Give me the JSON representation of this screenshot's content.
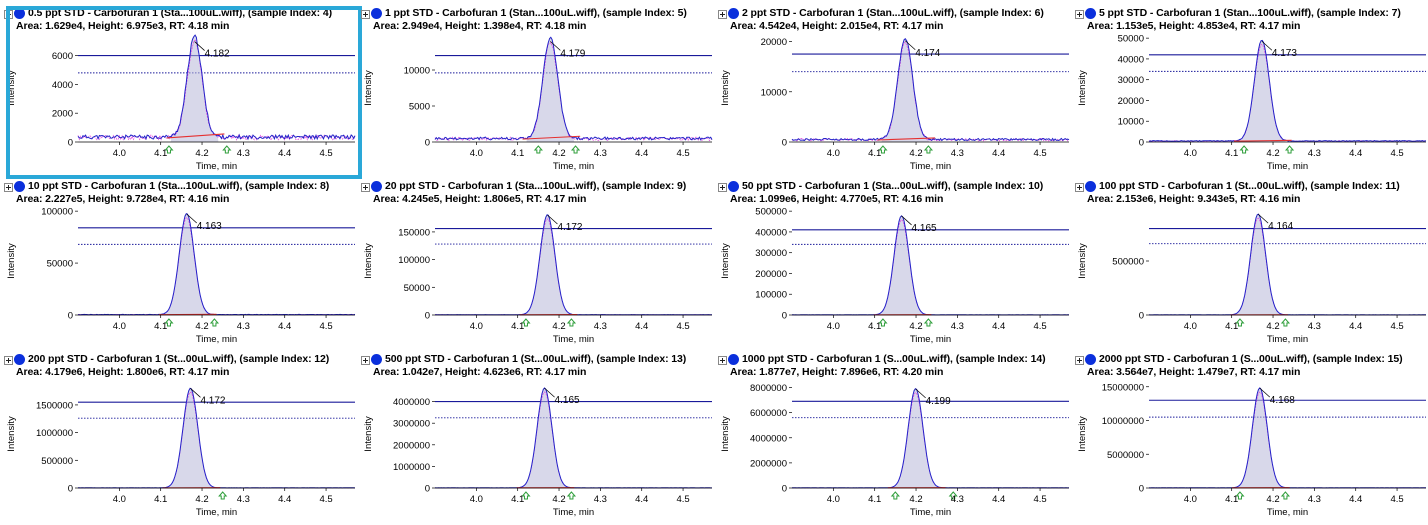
{
  "colors": {
    "series_dot": "#0a2fdc",
    "trace": "#2323c8",
    "trace_secondary": "#e040e0",
    "threshold": "#1a1a9a",
    "baseline": "#e53030",
    "fill": "#b8b8d8",
    "marker": "#2e9e3a",
    "selection": "#2aa8d8"
  },
  "axis_labels": {
    "x": "Time, min",
    "y": "Intensity"
  },
  "chart_data": [
    {
      "type": "line",
      "title": "0.5 ppt STD - Carbofuran 1 (Sta...100uL.wiff), (sample Index: 4)",
      "stats": "Area: 1.629e4, Height: 6.975e3, RT: 4.18 min",
      "apex_label": "4.182",
      "rt": 4.182,
      "height": 6975,
      "ylim": [
        0,
        7500
      ],
      "yticks": [
        "0",
        "2000",
        "4000",
        "6000"
      ],
      "ytick_values": [
        0,
        2000,
        4000,
        6000
      ],
      "xlim": [
        3.9,
        4.57
      ],
      "xticks": [
        "4.0",
        "4.1",
        "4.2",
        "4.3",
        "4.4",
        "4.5"
      ],
      "xtick_values": [
        4.0,
        4.1,
        4.2,
        4.3,
        4.4,
        4.5
      ],
      "noise": 350,
      "markers": [
        4.12,
        4.26
      ],
      "thresholds": [
        6000,
        4800
      ],
      "selected": true
    },
    {
      "type": "line",
      "title": "1 ppt STD - Carbofuran 1 (Stan...100uL.wiff), (sample Index: 5)",
      "stats": "Area: 2.949e4, Height: 1.398e4, RT: 4.18 min",
      "apex_label": "4.179",
      "rt": 4.179,
      "height": 13980,
      "ylim": [
        0,
        15000
      ],
      "yticks": [
        "0",
        "5000",
        "10000"
      ],
      "ytick_values": [
        0,
        5000,
        10000
      ],
      "xlim": [
        3.9,
        4.57
      ],
      "xticks": [
        "4.0",
        "4.1",
        "4.2",
        "4.3",
        "4.4",
        "4.5"
      ],
      "xtick_values": [
        4.0,
        4.1,
        4.2,
        4.3,
        4.4,
        4.5
      ],
      "noise": 500,
      "markers": [
        4.15,
        4.24
      ],
      "thresholds": [
        12000,
        9600
      ],
      "selected": false
    },
    {
      "type": "line",
      "title": "2 ppt STD - Carbofuran 1 (Stan...100uL.wiff), (sample Index: 6)",
      "stats": "Area: 4.542e4, Height: 2.015e4, RT: 4.17 min",
      "apex_label": "4.174",
      "rt": 4.174,
      "height": 20150,
      "ylim": [
        0,
        21500
      ],
      "yticks": [
        "0",
        "10000",
        "20000"
      ],
      "ytick_values": [
        0,
        10000,
        20000
      ],
      "xlim": [
        3.9,
        4.57
      ],
      "xticks": [
        "4.0",
        "4.1",
        "4.2",
        "4.3",
        "4.4",
        "4.5"
      ],
      "xtick_values": [
        4.0,
        4.1,
        4.2,
        4.3,
        4.4,
        4.5
      ],
      "noise": 500,
      "markers": [
        4.12,
        4.23
      ],
      "thresholds": [
        17500,
        14000
      ],
      "selected": false
    },
    {
      "type": "line",
      "title": "5 ppt STD - Carbofuran 1 (Stan...100uL.wiff), (sample Index: 7)",
      "stats": "Area: 1.153e5, Height: 4.853e4, RT: 4.17 min",
      "apex_label": "4.173",
      "rt": 4.173,
      "height": 48530,
      "ylim": [
        0,
        52000
      ],
      "yticks": [
        "0",
        "10000",
        "20000",
        "30000",
        "40000",
        "50000"
      ],
      "ytick_values": [
        0,
        10000,
        20000,
        30000,
        40000,
        50000
      ],
      "xlim": [
        3.9,
        4.57
      ],
      "xticks": [
        "4.0",
        "4.1",
        "4.2",
        "4.3",
        "4.4",
        "4.5"
      ],
      "xtick_values": [
        4.0,
        4.1,
        4.2,
        4.3,
        4.4,
        4.5
      ],
      "noise": 500,
      "markers": [
        4.13,
        4.24
      ],
      "thresholds": [
        42000,
        34000
      ],
      "selected": false
    },
    {
      "type": "line",
      "title": "10 ppt STD - Carbofuran 1 (Sta...100uL.wiff), (sample Index: 8)",
      "stats": "Area: 2.227e5, Height: 9.728e4, RT: 4.16 min",
      "apex_label": "4.163",
      "rt": 4.163,
      "height": 97280,
      "ylim": [
        0,
        104000
      ],
      "yticks": [
        "0",
        "50000",
        "100000"
      ],
      "ytick_values": [
        0,
        50000,
        100000
      ],
      "xlim": [
        3.9,
        4.57
      ],
      "xticks": [
        "4.0",
        "4.1",
        "4.2",
        "4.3",
        "4.4",
        "4.5"
      ],
      "xtick_values": [
        4.0,
        4.1,
        4.2,
        4.3,
        4.4,
        4.5
      ],
      "noise": 400,
      "markers": [
        4.12,
        4.23
      ],
      "thresholds": [
        84000,
        68000
      ],
      "selected": false
    },
    {
      "type": "line",
      "title": "20 ppt STD - Carbofuran 1 (Sta...100uL.wiff), (sample Index: 9)",
      "stats": "Area: 4.245e5, Height: 1.806e5, RT: 4.17 min",
      "apex_label": "4.172",
      "rt": 4.172,
      "height": 180600,
      "ylim": [
        0,
        195000
      ],
      "yticks": [
        "0",
        "50000",
        "100000",
        "150000"
      ],
      "ytick_values": [
        0,
        50000,
        100000,
        150000
      ],
      "xlim": [
        3.9,
        4.57
      ],
      "xticks": [
        "4.0",
        "4.1",
        "4.2",
        "4.3",
        "4.4",
        "4.5"
      ],
      "xtick_values": [
        4.0,
        4.1,
        4.2,
        4.3,
        4.4,
        4.5
      ],
      "noise": 500,
      "markers": [
        4.12,
        4.23
      ],
      "thresholds": [
        156000,
        128000
      ],
      "selected": false
    },
    {
      "type": "line",
      "title": "50 ppt STD - Carbofuran 1 (Sta...00uL.wiff), (sample Index: 10)",
      "stats": "Area: 1.099e6, Height: 4.770e5, RT: 4.16 min",
      "apex_label": "4.165",
      "rt": 4.165,
      "height": 477000,
      "ylim": [
        0,
        520000
      ],
      "yticks": [
        "0",
        "100000",
        "200000",
        "300000",
        "400000",
        "500000"
      ],
      "ytick_values": [
        0,
        100000,
        200000,
        300000,
        400000,
        500000
      ],
      "xlim": [
        3.9,
        4.57
      ],
      "xticks": [
        "4.0",
        "4.1",
        "4.2",
        "4.3",
        "4.4",
        "4.5"
      ],
      "xtick_values": [
        4.0,
        4.1,
        4.2,
        4.3,
        4.4,
        4.5
      ],
      "noise": 800,
      "markers": [
        4.12,
        4.23
      ],
      "thresholds": [
        410000,
        340000
      ],
      "selected": false
    },
    {
      "type": "line",
      "title": "100 ppt STD - Carbofuran 1 (St...00uL.wiff), (sample Index: 11)",
      "stats": "Area: 2.153e6, Height: 9.343e5, RT: 4.16 min",
      "apex_label": "4.164",
      "rt": 4.164,
      "height": 934300,
      "ylim": [
        0,
        1000000
      ],
      "yticks": [
        "0",
        "500000"
      ],
      "ytick_values": [
        0,
        500000
      ],
      "xlim": [
        3.9,
        4.57
      ],
      "xticks": [
        "4.0",
        "4.1",
        "4.2",
        "4.3",
        "4.4",
        "4.5"
      ],
      "xtick_values": [
        4.0,
        4.1,
        4.2,
        4.3,
        4.4,
        4.5
      ],
      "noise": 1500,
      "markers": [
        4.12,
        4.23
      ],
      "thresholds": [
        800000,
        660000
      ],
      "selected": false
    },
    {
      "type": "line",
      "title": "200 ppt STD - Carbofuran 1 (St...00uL.wiff), (sample Index: 12)",
      "stats": "Area: 4.179e6, Height: 1.800e6, RT: 4.17 min",
      "apex_label": "4.172",
      "rt": 4.172,
      "height": 1800000,
      "ylim": [
        0,
        1950000
      ],
      "yticks": [
        "0",
        "500000",
        "1000000",
        "1500000"
      ],
      "ytick_values": [
        0,
        500000,
        1000000,
        1500000
      ],
      "xlim": [
        3.9,
        4.57
      ],
      "xticks": [
        "4.0",
        "4.1",
        "4.2",
        "4.3",
        "4.4",
        "4.5"
      ],
      "xtick_values": [
        4.0,
        4.1,
        4.2,
        4.3,
        4.4,
        4.5
      ],
      "noise": 3000,
      "markers": [
        4.25
      ],
      "thresholds": [
        1550000,
        1260000
      ],
      "selected": false
    },
    {
      "type": "line",
      "title": "500 ppt STD - Carbofuran 1 (St...00uL.wiff), (sample Index: 13)",
      "stats": "Area: 1.042e7, Height: 4.623e6, RT: 4.17 min",
      "apex_label": "4.165",
      "rt": 4.165,
      "height": 4623000,
      "ylim": [
        0,
        5000000
      ],
      "yticks": [
        "0",
        "1000000",
        "2000000",
        "3000000",
        "4000000"
      ],
      "ytick_values": [
        0,
        1000000,
        2000000,
        3000000,
        4000000
      ],
      "xlim": [
        3.9,
        4.57
      ],
      "xticks": [
        "4.0",
        "4.1",
        "4.2",
        "4.3",
        "4.4",
        "4.5"
      ],
      "xtick_values": [
        4.0,
        4.1,
        4.2,
        4.3,
        4.4,
        4.5
      ],
      "noise": 8000,
      "markers": [
        4.12,
        4.23
      ],
      "thresholds": [
        4000000,
        3250000
      ],
      "selected": false
    },
    {
      "type": "line",
      "title": "1000 ppt STD - Carbofuran 1 (S...00uL.wiff), (sample Index: 14)",
      "stats": "Area: 1.877e7, Height: 7.896e6, RT: 4.20 min",
      "apex_label": "4.199",
      "rt": 4.199,
      "height": 7896000,
      "ylim": [
        0,
        8600000
      ],
      "yticks": [
        "0",
        "2000000",
        "4000000",
        "6000000",
        "8000000"
      ],
      "ytick_values": [
        0,
        2000000,
        4000000,
        6000000,
        8000000
      ],
      "xlim": [
        3.9,
        4.57
      ],
      "xticks": [
        "4.0",
        "4.1",
        "4.2",
        "4.3",
        "4.4",
        "4.5"
      ],
      "xtick_values": [
        4.0,
        4.1,
        4.2,
        4.3,
        4.4,
        4.5
      ],
      "noise": 15000,
      "markers": [
        4.15,
        4.29
      ],
      "thresholds": [
        6900000,
        5600000
      ],
      "selected": false
    },
    {
      "type": "line",
      "title": "2000 ppt STD - Carbofuran 1 (S...00uL.wiff), (sample Index: 15)",
      "stats": "Area: 3.564e7, Height: 1.479e7, RT: 4.17 min",
      "apex_label": "4.168",
      "rt": 4.168,
      "height": 14790000,
      "ylim": [
        0,
        16000000
      ],
      "yticks": [
        "0",
        "5000000",
        "10000000",
        "15000000"
      ],
      "ytick_values": [
        0,
        5000000,
        10000000,
        15000000
      ],
      "xlim": [
        3.9,
        4.57
      ],
      "xticks": [
        "4.0",
        "4.1",
        "4.2",
        "4.3",
        "4.4",
        "4.5"
      ],
      "xtick_values": [
        4.0,
        4.1,
        4.2,
        4.3,
        4.4,
        4.5
      ],
      "noise": 30000,
      "markers": [
        4.12,
        4.23
      ],
      "thresholds": [
        13000000,
        10500000
      ],
      "selected": false
    }
  ]
}
